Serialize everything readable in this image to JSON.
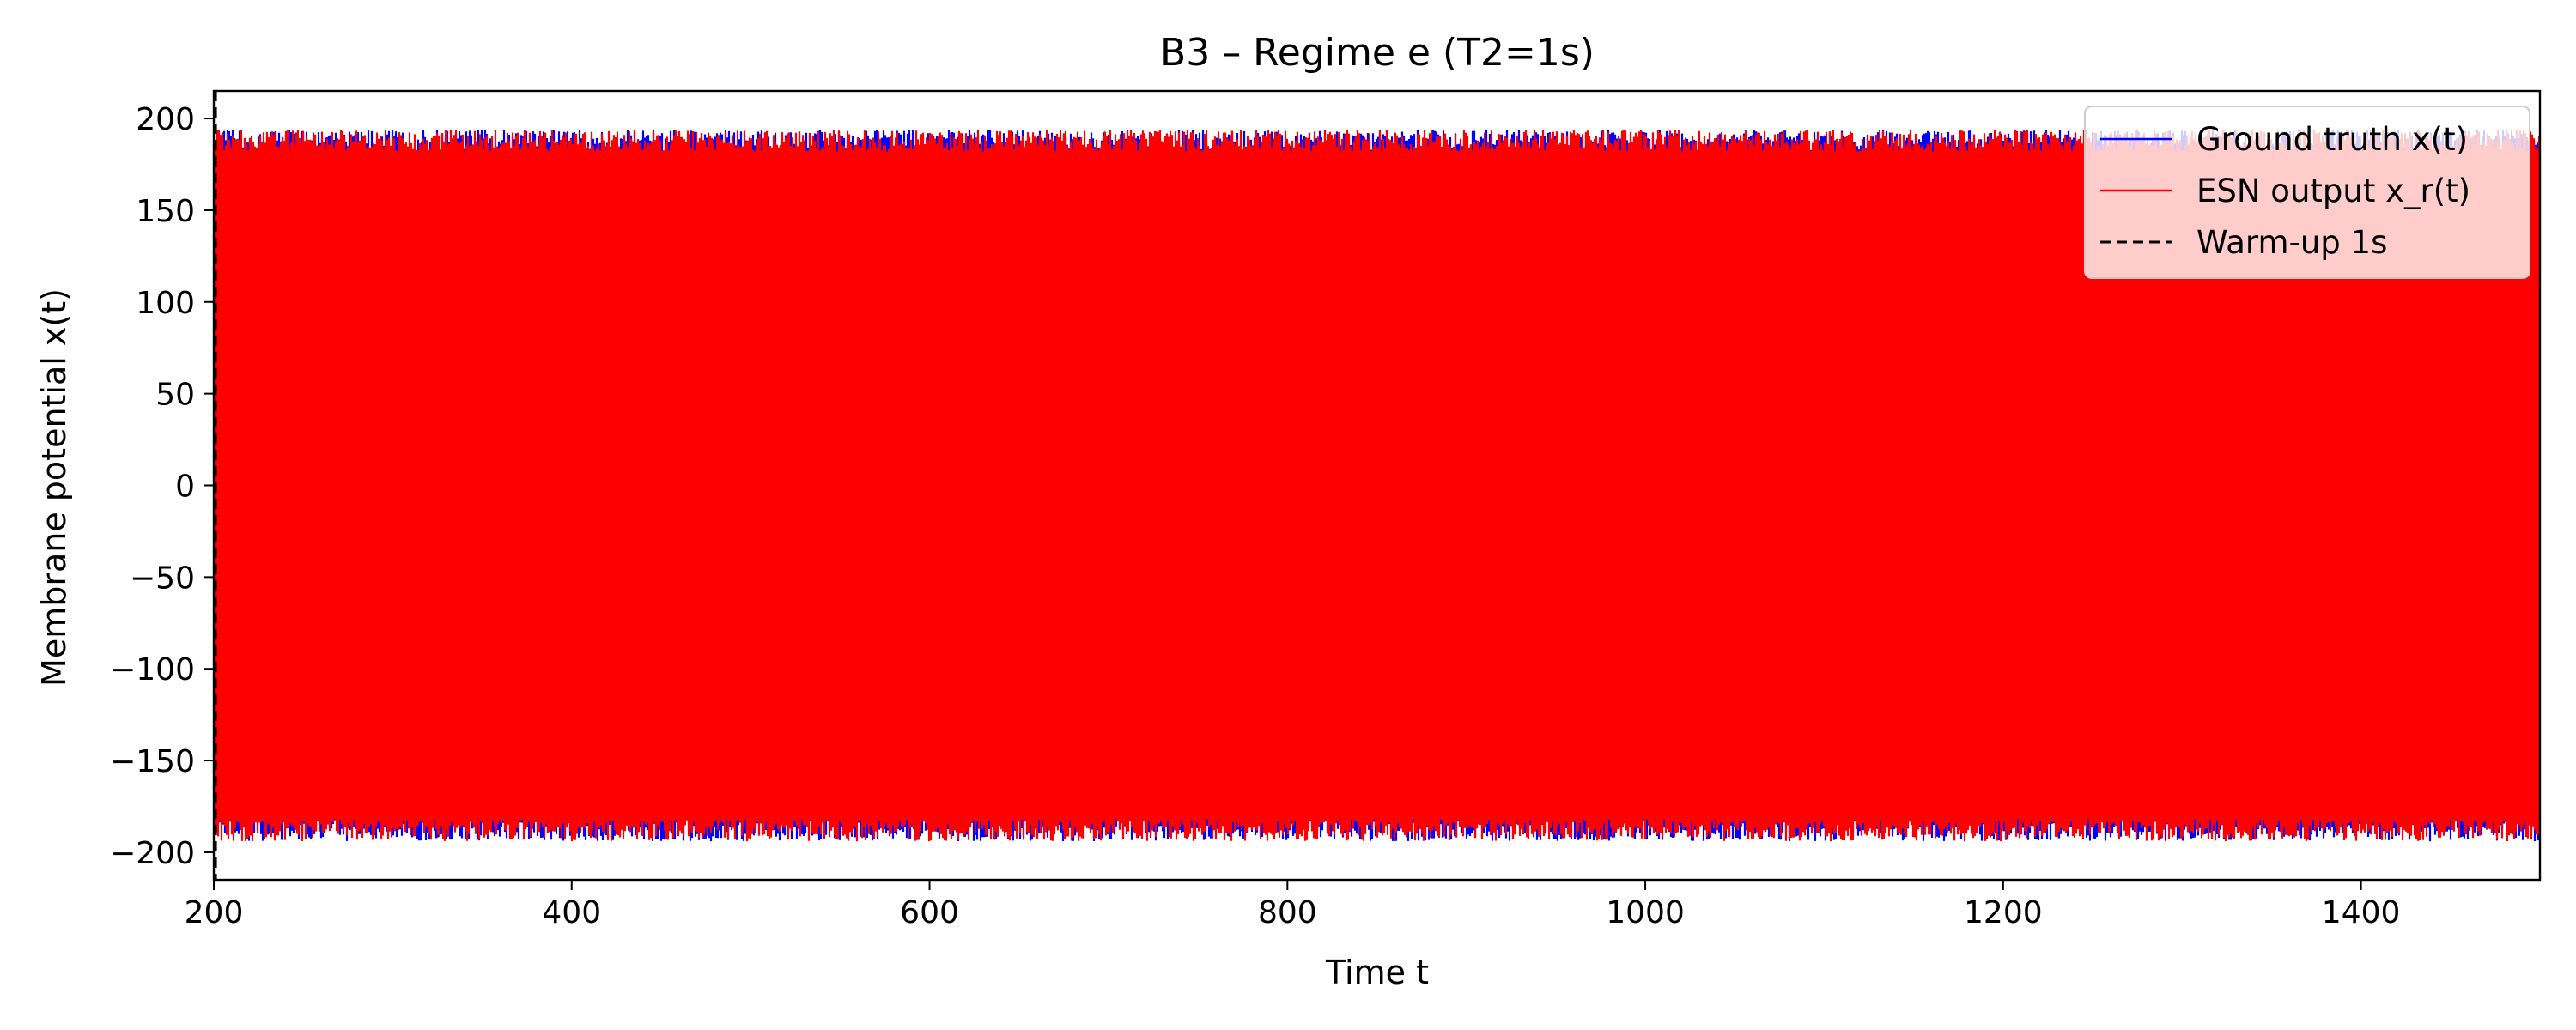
{
  "chart_data": {
    "type": "line",
    "title": "B3 – Regime e (T2=1s)",
    "xlabel": "Time t",
    "ylabel": "Membrane potential x(t)",
    "xlim": [
      200,
      1500
    ],
    "ylim": [
      -215,
      215
    ],
    "xticks": [
      200,
      400,
      600,
      800,
      1000,
      1200,
      1400
    ],
    "yticks": [
      -200,
      -150,
      -100,
      -50,
      0,
      50,
      100,
      150,
      200
    ],
    "grid": false,
    "legend_position": "top-right",
    "series": [
      {
        "name": "Ground truth x(t)",
        "color": "#0000ff",
        "style": "solid",
        "description_values": {
          "x_start": 200,
          "x_end": 1500,
          "amplitude_min": -190,
          "amplitude_max": 190
        }
      },
      {
        "name": "ESN output x_r(t)",
        "color": "#ff0000",
        "style": "solid",
        "description_values": {
          "x_start": 200,
          "x_end": 1500,
          "amplitude_min": -190,
          "amplitude_max": 190
        }
      }
    ],
    "annotations": [
      {
        "name": "Warm-up 1s",
        "type": "vline",
        "x": 201,
        "color": "#000000",
        "style": "dashed"
      }
    ]
  }
}
